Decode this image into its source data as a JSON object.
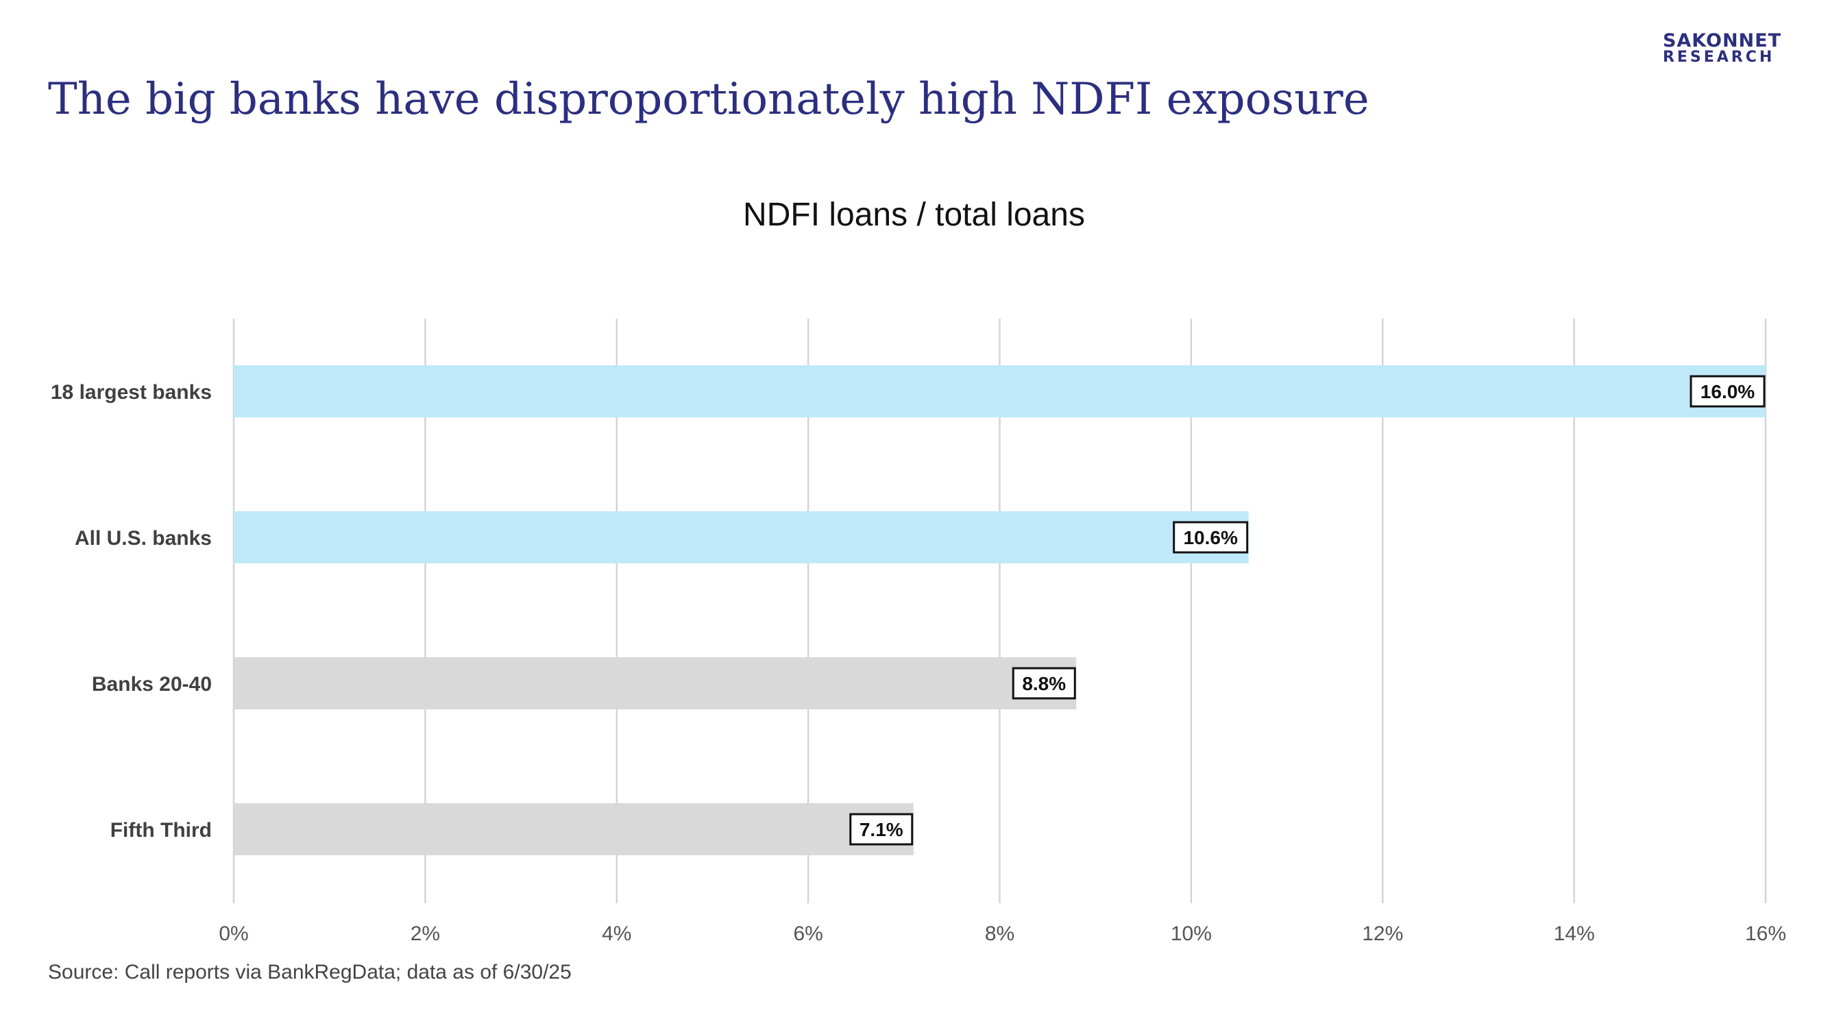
{
  "logo": {
    "line1": "SAKONNET",
    "line2": "RESEARCH"
  },
  "slide_title": "The big banks have disproportionately high NDFI exposure",
  "source": "Source: Call reports via BankRegData; data as of 6/30/25",
  "colors": {
    "brand": "#2c2f7f",
    "bar_highlight": "#bfe9f8",
    "bar_neutral": "#d9d9d9",
    "grid": "#d4d4d4"
  },
  "chart_data": {
    "type": "bar",
    "orientation": "horizontal",
    "title": "NDFI loans / total loans",
    "categories": [
      "18 largest banks",
      "All U.S. banks",
      "Banks 20-40",
      "Fifth Third"
    ],
    "values": [
      16.0,
      10.6,
      8.8,
      7.1
    ],
    "data_labels": [
      "16.0%",
      "10.6%",
      "8.8%",
      "7.1%"
    ],
    "bar_colors": [
      "#bfe9f8",
      "#bfe9f8",
      "#d9d9d9",
      "#d9d9d9"
    ],
    "xlim": [
      0,
      16
    ],
    "x_ticks": [
      0,
      2,
      4,
      6,
      8,
      10,
      12,
      14,
      16
    ],
    "x_tick_labels": [
      "0%",
      "2%",
      "4%",
      "6%",
      "8%",
      "10%",
      "12%",
      "14%",
      "16%"
    ],
    "xlabel": "",
    "ylabel": "",
    "grid": true,
    "legend": false
  }
}
